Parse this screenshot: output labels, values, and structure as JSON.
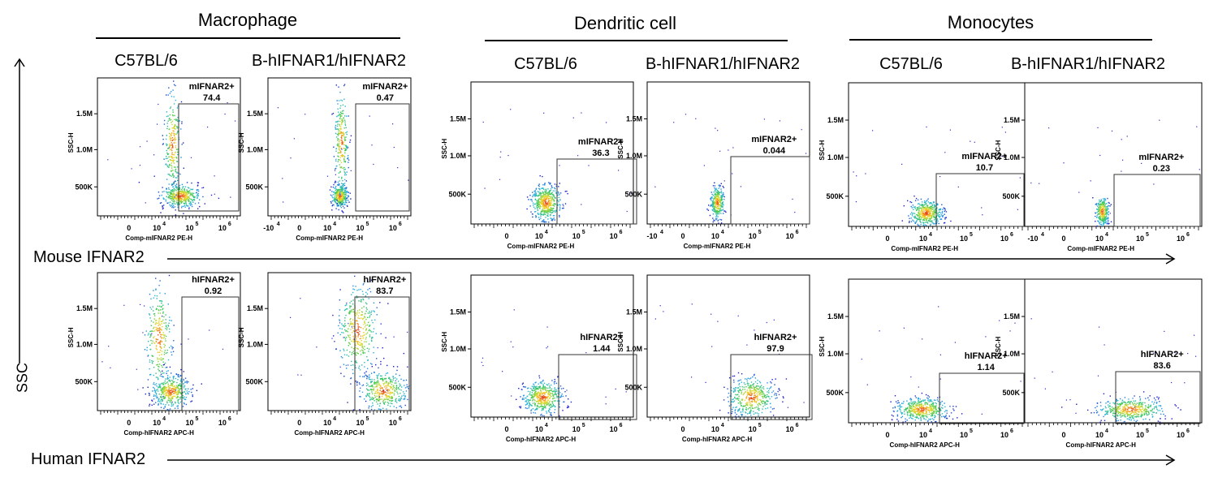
{
  "groups": [
    {
      "title": "Macrophage",
      "cols": [
        "C57BL/6",
        "B-hIFNAR1/hIFNAR2"
      ]
    },
    {
      "title": "Dendritic cell",
      "cols": [
        "C57BL/6",
        "B-hIFNAR1/hIFNAR2"
      ]
    },
    {
      "title": "Monocytes",
      "cols": [
        "C57BL/6",
        "B-hIFNAR1/hIFNAR2"
      ]
    }
  ],
  "rows": [
    {
      "label": "Mouse IFNAR2",
      "xlabel": "Comp-mIFNAR2 PE-H",
      "gate": "mIFNAR2+"
    },
    {
      "label": "Human IFNAR2",
      "xlabel": "Comp-hIFNAR2 APC-H",
      "gate": "hIFNAR2+"
    }
  ],
  "y_axis_label": "SSC",
  "plot_ylabel": "SSC-H",
  "yticks": [
    "500K",
    "1.0M",
    "1.5M"
  ],
  "xtick_neg": "-10",
  "xtick_zero": "0",
  "xtick_base": "10",
  "xtick_exps": [
    "4",
    "5",
    "6"
  ],
  "chart_data": {
    "type": "scatter",
    "plots": [
      {
        "group": "Macrophage",
        "strain": "C57BL/6",
        "marker": "mIFNAR2+",
        "percent": "74.4"
      },
      {
        "group": "Macrophage",
        "strain": "B-hIFNAR1/hIFNAR2",
        "marker": "mIFNAR2+",
        "percent": "0.47"
      },
      {
        "group": "Dendritic cell",
        "strain": "C57BL/6",
        "marker": "mIFNAR2+",
        "percent": "36.3"
      },
      {
        "group": "Dendritic cell",
        "strain": "B-hIFNAR1/hIFNAR2",
        "marker": "mIFNAR2+",
        "percent": "0.044"
      },
      {
        "group": "Monocytes",
        "strain": "C57BL/6",
        "marker": "mIFNAR2+",
        "percent": "10.7"
      },
      {
        "group": "Monocytes",
        "strain": "B-hIFNAR1/hIFNAR2",
        "marker": "mIFNAR2+",
        "percent": "0.23"
      },
      {
        "group": "Macrophage",
        "strain": "C57BL/6",
        "marker": "hIFNAR2+",
        "percent": "0.92"
      },
      {
        "group": "Macrophage",
        "strain": "B-hIFNAR1/hIFNAR2",
        "marker": "hIFNAR2+",
        "percent": "83.7"
      },
      {
        "group": "Dendritic cell",
        "strain": "C57BL/6",
        "marker": "hIFNAR2+",
        "percent": "1.44"
      },
      {
        "group": "Dendritic cell",
        "strain": "B-hIFNAR1/hIFNAR2",
        "marker": "hIFNAR2+",
        "percent": "97.9"
      },
      {
        "group": "Monocytes",
        "strain": "C57BL/6",
        "marker": "hIFNAR2+",
        "percent": "1.14"
      },
      {
        "group": "Monocytes",
        "strain": "B-hIFNAR1/hIFNAR2",
        "marker": "hIFNAR2+",
        "percent": "83.6"
      }
    ]
  }
}
